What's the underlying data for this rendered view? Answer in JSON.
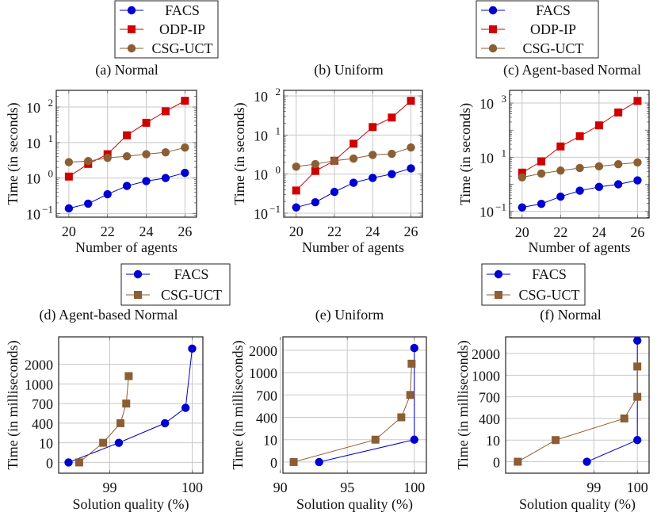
{
  "colors": {
    "FACS": "#0000d0",
    "ODP-IP": "#d00000",
    "CSG-UCT": "#8c5e33",
    "grid": "#c8c8c8"
  },
  "chart_data": [
    {
      "type": "line",
      "caption": "(a) Normal",
      "yscale": "log",
      "xlabel": "Number of agents",
      "ylabel": "Time (in seconds)",
      "xlim": [
        19.35,
        26.6
      ],
      "ylim": [
        0.079,
        295
      ],
      "xticks": [
        20,
        22,
        24,
        26
      ],
      "yticks": [
        {
          "value": 0.1,
          "base": "10",
          "exp": "−1"
        },
        {
          "value": 1,
          "base": "10",
          "exp": "0"
        },
        {
          "value": 10,
          "base": "10",
          "exp": "1"
        },
        {
          "value": 100,
          "base": "10",
          "exp": "2"
        }
      ],
      "legend": [
        "FACS",
        "ODP-IP",
        "CSG-UCT"
      ],
      "grid": true,
      "x": [
        20,
        21,
        22,
        23,
        24,
        25,
        26
      ],
      "series": [
        {
          "name": "FACS",
          "marker": "circle",
          "values": [
            0.14,
            0.19,
            0.35,
            0.6,
            0.82,
            1.0,
            1.4
          ]
        },
        {
          "name": "ODP-IP",
          "marker": "square",
          "values": [
            1.1,
            2.5,
            4.7,
            16,
            36,
            76,
            150
          ]
        },
        {
          "name": "CSG-UCT",
          "marker": "circle",
          "values": [
            2.8,
            3.0,
            3.7,
            4.1,
            4.7,
            5.3,
            7.2
          ]
        }
      ]
    },
    {
      "type": "line",
      "caption": "(b) Uniform",
      "yscale": "log",
      "xlabel": "Number of agents",
      "ylabel": "Time (in seconds)",
      "xlim": [
        19.35,
        26.6
      ],
      "ylim": [
        0.079,
        139
      ],
      "xticks": [
        20,
        22,
        24,
        26
      ],
      "yticks": [
        {
          "value": 0.1,
          "base": "10",
          "exp": "−1"
        },
        {
          "value": 1,
          "base": "10",
          "exp": "0"
        },
        {
          "value": 10,
          "base": "10",
          "exp": "1"
        },
        {
          "value": 100,
          "base": "10",
          "exp": "2"
        }
      ],
      "legend": [],
      "grid": true,
      "x": [
        20,
        21,
        22,
        23,
        24,
        25,
        26
      ],
      "series": [
        {
          "name": "FACS",
          "marker": "circle",
          "values": [
            0.14,
            0.19,
            0.35,
            0.6,
            0.8,
            1.0,
            1.4
          ]
        },
        {
          "name": "ODP-IP",
          "marker": "square",
          "values": [
            0.38,
            1.2,
            2.2,
            6.0,
            16,
            28,
            75
          ]
        },
        {
          "name": "CSG-UCT",
          "marker": "circle",
          "values": [
            1.55,
            1.8,
            2.2,
            2.5,
            3.1,
            3.3,
            4.8
          ]
        }
      ]
    },
    {
      "type": "line",
      "caption": "(c) Agent-based Normal",
      "yscale": "log",
      "xlabel": "Number of agents",
      "ylabel": "Time (in seconds)",
      "xlim": [
        19.35,
        26.6
      ],
      "ylim": [
        0.057,
        2950
      ],
      "xticks": [
        20,
        22,
        24,
        26
      ],
      "yticks": [
        {
          "value": 0.1,
          "base": "10",
          "exp": "−1"
        },
        {
          "value": 10,
          "base": "10",
          "exp": "1"
        },
        {
          "value": 1000,
          "base": "10",
          "exp": "3"
        }
      ],
      "legend": [
        "FACS",
        "ODP-IP",
        "CSG-UCT"
      ],
      "grid": true,
      "x": [
        20,
        21,
        22,
        23,
        24,
        25,
        26
      ],
      "series": [
        {
          "name": "FACS",
          "marker": "circle",
          "values": [
            0.14,
            0.19,
            0.35,
            0.58,
            0.8,
            1.0,
            1.4
          ]
        },
        {
          "name": "ODP-IP",
          "marker": "square",
          "values": [
            2.7,
            7.0,
            25,
            60,
            150,
            450,
            1200
          ]
        },
        {
          "name": "CSG-UCT",
          "marker": "circle",
          "values": [
            1.8,
            2.5,
            3.2,
            4.0,
            4.6,
            5.5,
            6.4
          ]
        }
      ]
    },
    {
      "type": "line",
      "caption": "(d) Agent-based Normal",
      "yscale": "ordinal",
      "xlabel": "Solution quality (%)",
      "ylabel": "Time (in milliseconds)",
      "xlim": [
        98.38,
        100.13
      ],
      "ylim": [
        -0.55,
        6.4
      ],
      "xticks": [
        99,
        100
      ],
      "ytick_labels": [
        "0",
        "10",
        "400",
        "700",
        "1000",
        "2000"
      ],
      "legend": [
        "FACS",
        "CSG-UCT"
      ],
      "grid": true,
      "series": [
        {
          "name": "FACS",
          "marker": "circle",
          "points": [
            [
              98.5,
              0
            ],
            [
              99.11,
              1
            ],
            [
              99.67,
              2
            ],
            [
              99.92,
              2.78
            ],
            [
              100.0,
              5.8
            ]
          ]
        },
        {
          "name": "CSG-UCT",
          "marker": "square",
          "points": [
            [
              98.63,
              0
            ],
            [
              98.92,
              1
            ],
            [
              99.13,
              2
            ],
            [
              99.2,
              3
            ],
            [
              99.23,
              4.4
            ]
          ]
        }
      ]
    },
    {
      "type": "line",
      "caption": "(e) Uniform",
      "yscale": "ordinal",
      "xlabel": "Solution quality (%)",
      "ylabel": "Time (in milliseconds)",
      "xlim": [
        90.2,
        100.9
      ],
      "ylim": [
        -0.5,
        5.6
      ],
      "xticks": [
        90,
        95,
        100
      ],
      "ytick_labels": [
        "0",
        "10",
        "400",
        "700",
        "1000",
        "2000"
      ],
      "legend": [],
      "grid": true,
      "series": [
        {
          "name": "FACS",
          "marker": "circle",
          "points": [
            [
              92.9,
              0
            ],
            [
              100.0,
              1
            ],
            [
              100.0,
              5.1
            ]
          ]
        },
        {
          "name": "CSG-UCT",
          "marker": "square",
          "points": [
            [
              91.0,
              0
            ],
            [
              97.1,
              1
            ],
            [
              99.03,
              2
            ],
            [
              99.7,
              3
            ],
            [
              99.8,
              4.4
            ]
          ]
        }
      ]
    },
    {
      "type": "line",
      "caption": "(f) Normal",
      "yscale": "ordinal",
      "xlabel": "Solution quality (%)",
      "ylabel": "Time (in milliseconds)",
      "xlim": [
        96.97,
        100.27
      ],
      "ylim": [
        -0.53,
        5.77
      ],
      "xticks": [
        99,
        100
      ],
      "ytick_labels": [
        "0",
        "10",
        "400",
        "700",
        "1000",
        "2000"
      ],
      "legend": [
        "FACS",
        "CSG-UCT"
      ],
      "grid": true,
      "series": [
        {
          "name": "FACS",
          "marker": "circle",
          "points": [
            [
              98.84,
              0
            ],
            [
              100.0,
              1
            ],
            [
              100.0,
              5.6
            ]
          ]
        },
        {
          "name": "CSG-UCT",
          "marker": "square",
          "points": [
            [
              97.25,
              0
            ],
            [
              98.12,
              1
            ],
            [
              99.7,
              2
            ],
            [
              100.0,
              3
            ],
            [
              100.0,
              4.4
            ]
          ]
        }
      ]
    }
  ]
}
